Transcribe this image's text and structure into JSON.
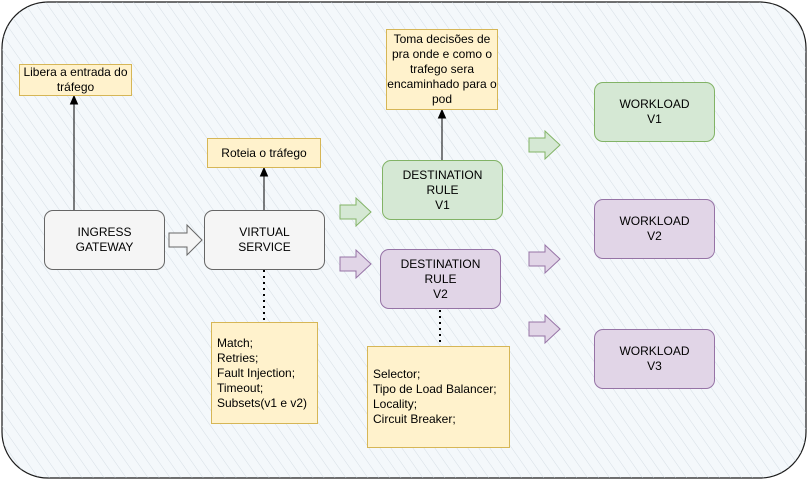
{
  "nodes": {
    "ingress": {
      "line1": "INGRESS",
      "line2": "GATEWAY"
    },
    "virtual_service": {
      "line1": "VIRTUAL",
      "line2": "SERVICE"
    },
    "dest_v1": {
      "line1": "DESTINATION",
      "line2": "RULE",
      "line3": "V1"
    },
    "dest_v2": {
      "line1": "DESTINATION",
      "line2": "RULE",
      "line3": "V2"
    },
    "workload_v1": {
      "line1": "WORKLOAD",
      "line2": "V1"
    },
    "workload_v2": {
      "line1": "WORKLOAD",
      "line2": "V2"
    },
    "workload_v3": {
      "line1": "WORKLOAD",
      "line2": "V3"
    }
  },
  "notes": {
    "ingress": [
      "Libera a entrada do",
      "tráfego"
    ],
    "virtual_service": [
      "Roteia o tráfego"
    ],
    "destination": [
      "Toma decisões de",
      "pra onde e como o",
      "trafego sera",
      "encaminhado para o",
      "pod"
    ],
    "vs_features": [
      "Match;",
      "Retries;",
      "Fault Injection;",
      "Timeout;",
      "Subsets(v1 e v2)"
    ],
    "dr_features": [
      "Selector;",
      "Tipo de Load Balancer;",
      "Locality;",
      "Circuit Breaker;"
    ]
  },
  "colors": {
    "green_fill": "#d5e8d4",
    "green_stroke": "#82b366",
    "purple_fill": "#e1d5e7",
    "purple_stroke": "#9673a6",
    "note_fill": "#fff2cc",
    "note_stroke": "#d6b656",
    "container_fill": "#f0f6fa"
  }
}
